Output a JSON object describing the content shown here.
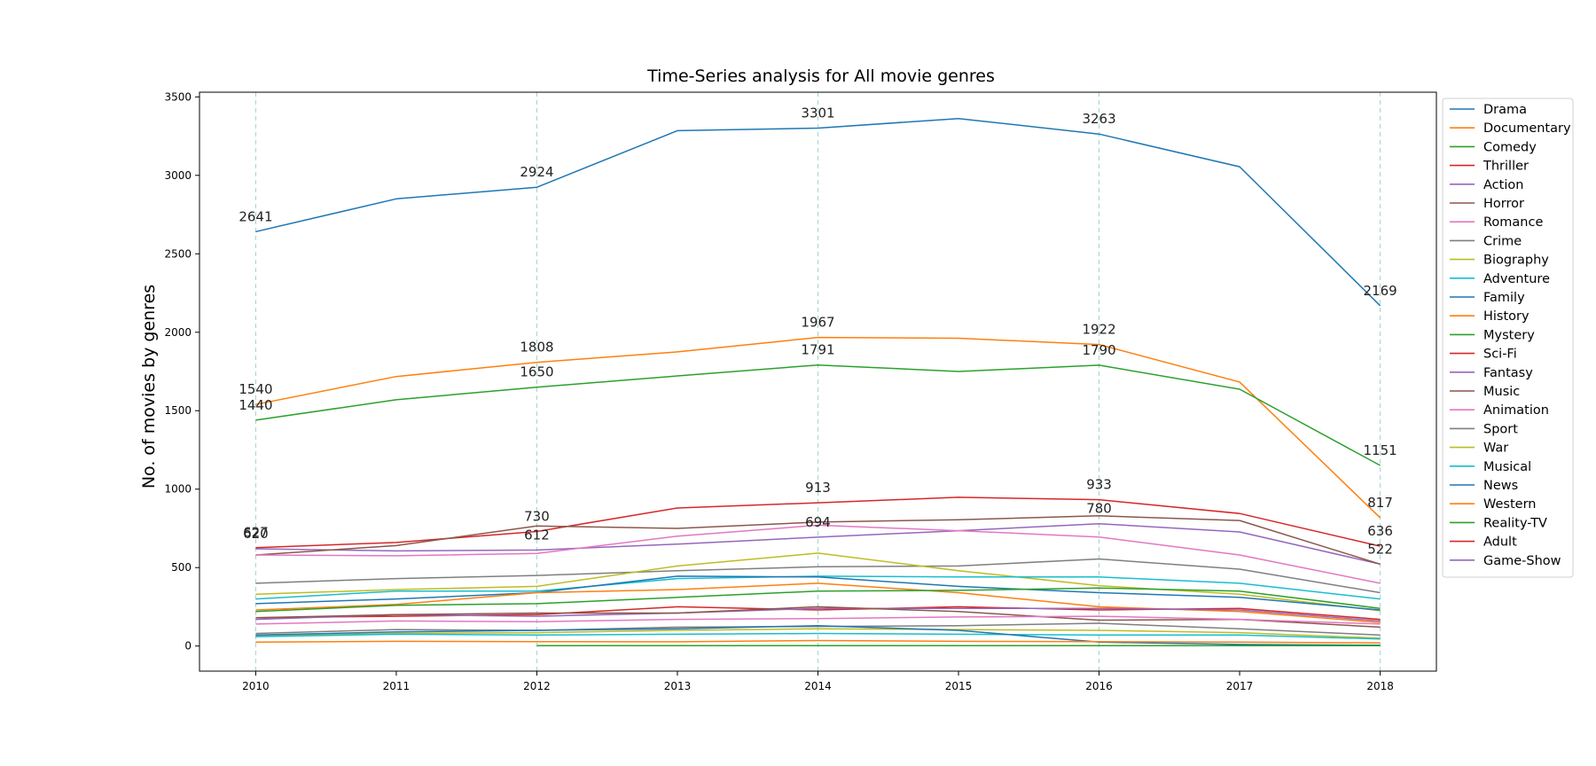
{
  "chart_data": {
    "type": "line",
    "title": "Time-Series analysis for All movie genres",
    "xlabel": "",
    "ylabel": "No. of movies by genres",
    "x": [
      2010,
      2011,
      2012,
      2013,
      2014,
      2015,
      2016,
      2017,
      2018
    ],
    "xlim": [
      2009.6,
      2018.4
    ],
    "ylim": [
      -160,
      3530
    ],
    "yticks": [
      0,
      500,
      1000,
      1500,
      2000,
      2500,
      3000,
      3500
    ],
    "vertical_gridlines_at": [
      2010,
      2012,
      2014,
      2016,
      2018
    ],
    "legend_position": "outside-right",
    "series": [
      {
        "name": "Drama",
        "color": "#1f77b4",
        "values": [
          2641,
          2850,
          2924,
          3285,
          3301,
          3362,
          3263,
          3055,
          2169
        ]
      },
      {
        "name": "Documentary",
        "color": "#ff7f0e",
        "values": [
          1540,
          1718,
          1808,
          1875,
          1967,
          1962,
          1922,
          1683,
          817
        ]
      },
      {
        "name": "Comedy",
        "color": "#2ca02c",
        "values": [
          1440,
          1570,
          1650,
          1722,
          1791,
          1750,
          1790,
          1637,
          1151
        ]
      },
      {
        "name": "Thriller",
        "color": "#d62728",
        "values": [
          627,
          660,
          730,
          880,
          913,
          948,
          933,
          845,
          636
        ]
      },
      {
        "name": "Action",
        "color": "#9467bd",
        "values": [
          620,
          606,
          612,
          650,
          694,
          735,
          780,
          727,
          522
        ]
      },
      {
        "name": "Horror",
        "color": "#8c564b",
        "values": [
          580,
          640,
          765,
          750,
          790,
          805,
          830,
          800,
          522
        ]
      },
      {
        "name": "Romance",
        "color": "#e377c2",
        "values": [
          580,
          575,
          590,
          700,
          770,
          735,
          695,
          580,
          400
        ]
      },
      {
        "name": "Crime",
        "color": "#7f7f7f",
        "values": [
          400,
          430,
          450,
          480,
          505,
          510,
          555,
          490,
          340
        ]
      },
      {
        "name": "Biography",
        "color": "#bcbd22",
        "values": [
          330,
          360,
          380,
          510,
          592,
          480,
          385,
          330,
          225
        ]
      },
      {
        "name": "Adventure",
        "color": "#17becf",
        "values": [
          300,
          350,
          350,
          430,
          445,
          440,
          440,
          400,
          300
        ]
      },
      {
        "name": "Family",
        "color": "#1f77b4",
        "values": [
          270,
          300,
          340,
          445,
          440,
          380,
          340,
          310,
          230
        ]
      },
      {
        "name": "History",
        "color": "#ff7f0e",
        "values": [
          230,
          265,
          340,
          360,
          400,
          340,
          250,
          220,
          150
        ]
      },
      {
        "name": "Mystery",
        "color": "#2ca02c",
        "values": [
          220,
          260,
          270,
          310,
          350,
          355,
          370,
          350,
          240
        ]
      },
      {
        "name": "Sci-Fi",
        "color": "#d62728",
        "values": [
          180,
          190,
          200,
          250,
          230,
          250,
          230,
          240,
          170
        ]
      },
      {
        "name": "Fantasy",
        "color": "#9467bd",
        "values": [
          170,
          200,
          190,
          210,
          240,
          240,
          240,
          230,
          160
        ]
      },
      {
        "name": "Music",
        "color": "#8c564b",
        "values": [
          180,
          200,
          210,
          210,
          250,
          220,
          165,
          170,
          120
        ]
      },
      {
        "name": "Animation",
        "color": "#e377c2",
        "values": [
          140,
          160,
          155,
          170,
          175,
          185,
          190,
          170,
          140
        ]
      },
      {
        "name": "Sport",
        "color": "#7f7f7f",
        "values": [
          80,
          105,
          100,
          120,
          125,
          130,
          145,
          110,
          70
        ]
      },
      {
        "name": "War",
        "color": "#bcbd22",
        "values": [
          65,
          80,
          85,
          100,
          110,
          105,
          100,
          85,
          50
        ]
      },
      {
        "name": "Musical",
        "color": "#17becf",
        "values": [
          60,
          75,
          70,
          75,
          80,
          75,
          70,
          70,
          45
        ]
      },
      {
        "name": "News",
        "color": "#1f77b4",
        "values": [
          70,
          90,
          100,
          110,
          130,
          100,
          25,
          10,
          5
        ]
      },
      {
        "name": "Western",
        "color": "#ff7f0e",
        "values": [
          25,
          30,
          28,
          27,
          35,
          30,
          28,
          25,
          20
        ]
      },
      {
        "name": "Reality-TV",
        "color": "#2ca02c",
        "values": [
          null,
          null,
          3,
          3,
          3,
          3,
          3,
          3,
          3
        ]
      },
      {
        "name": "Adult",
        "color": "#d62728",
        "values": [
          null,
          null,
          null,
          null,
          null,
          null,
          null,
          null,
          null
        ]
      },
      {
        "name": "Game-Show",
        "color": "#9467bd",
        "values": [
          null,
          null,
          null,
          null,
          null,
          null,
          null,
          null,
          null
        ]
      }
    ],
    "annotations": [
      {
        "x": 2010,
        "y": 2641,
        "text": "2641"
      },
      {
        "x": 2012,
        "y": 2924,
        "text": "2924"
      },
      {
        "x": 2014,
        "y": 3301,
        "text": "3301"
      },
      {
        "x": 2016,
        "y": 3263,
        "text": "3263"
      },
      {
        "x": 2018,
        "y": 2169,
        "text": "2169"
      },
      {
        "x": 2010,
        "y": 1540,
        "text": "1540"
      },
      {
        "x": 2012,
        "y": 1808,
        "text": "1808"
      },
      {
        "x": 2014,
        "y": 1967,
        "text": "1967"
      },
      {
        "x": 2016,
        "y": 1922,
        "text": "1922"
      },
      {
        "x": 2018,
        "y": 817,
        "text": "817"
      },
      {
        "x": 2010,
        "y": 1440,
        "text": "1440"
      },
      {
        "x": 2012,
        "y": 1650,
        "text": "1650"
      },
      {
        "x": 2014,
        "y": 1791,
        "text": "1791"
      },
      {
        "x": 2016,
        "y": 1790,
        "text": "1790"
      },
      {
        "x": 2018,
        "y": 1151,
        "text": "1151"
      },
      {
        "x": 2010,
        "y": 627,
        "text": "627"
      },
      {
        "x": 2012,
        "y": 730,
        "text": "730"
      },
      {
        "x": 2014,
        "y": 913,
        "text": "913"
      },
      {
        "x": 2016,
        "y": 933,
        "text": "933"
      },
      {
        "x": 2018,
        "y": 636,
        "text": "636"
      },
      {
        "x": 2010,
        "y": 620,
        "text": "620"
      },
      {
        "x": 2012,
        "y": 612,
        "text": "612"
      },
      {
        "x": 2014,
        "y": 694,
        "text": "694"
      },
      {
        "x": 2016,
        "y": 780,
        "text": "780"
      },
      {
        "x": 2018,
        "y": 522,
        "text": "522"
      }
    ]
  }
}
